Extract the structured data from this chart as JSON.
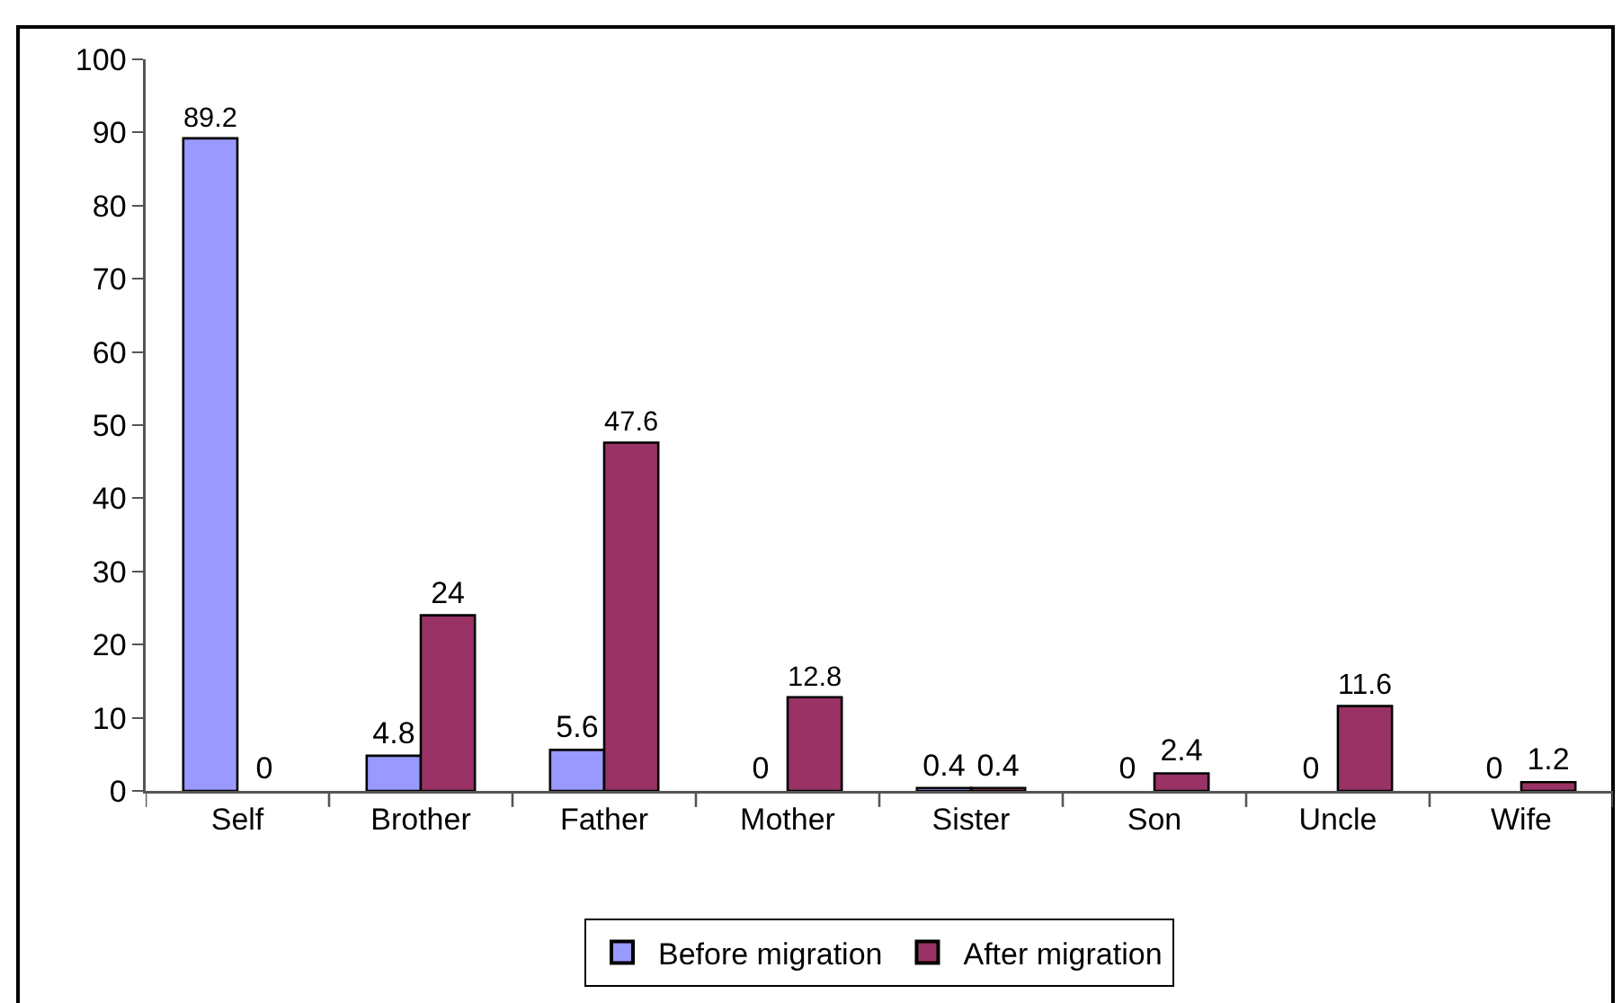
{
  "chart_data": {
    "type": "bar",
    "categories": [
      "Self",
      "Brother",
      "Father",
      "Mother",
      "Sister",
      "Son",
      "Uncle",
      "Wife"
    ],
    "series": [
      {
        "name": "Before migration",
        "color": "#9999ff",
        "values": [
          89.2,
          4.8,
          5.6,
          0,
          0.4,
          0,
          0,
          0
        ]
      },
      {
        "name": "After migration",
        "color": "#993366",
        "values": [
          0,
          24,
          47.6,
          12.8,
          0.4,
          2.4,
          11.6,
          1.2
        ]
      }
    ],
    "ylim": [
      0,
      100
    ],
    "yticks": [
      0,
      10,
      20,
      30,
      40,
      50,
      60,
      70,
      80,
      90,
      100
    ],
    "grid": false,
    "legend": "bottom",
    "data_labels": true
  }
}
